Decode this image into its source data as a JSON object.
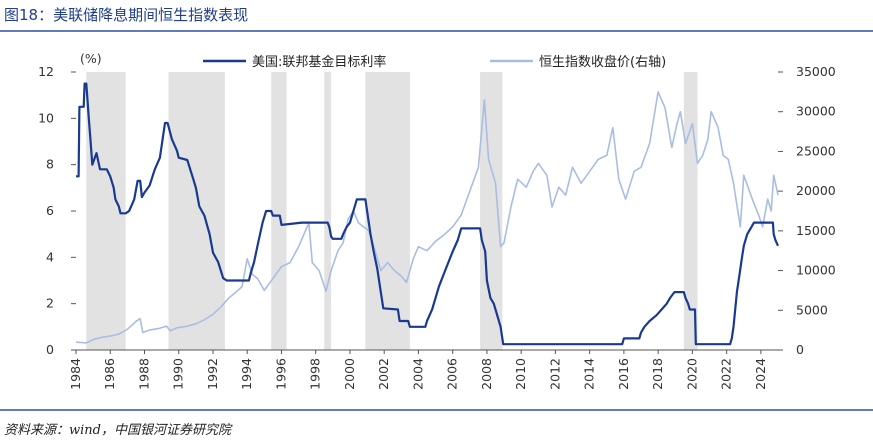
{
  "figure": {
    "title": "图18：美联储降息期间恒生指数表现",
    "source": "资料来源：wind，中国银河证券研究院"
  },
  "colors": {
    "rate": "#1a3a8f",
    "hsi": "#a9bde3",
    "shade": "#e2e2e2",
    "accent": "#1f3f8a"
  },
  "chart_data": {
    "type": "line",
    "title": "",
    "y_left_unit": "(%)",
    "x_range": [
      1984,
      2025
    ],
    "y_left": {
      "range": [
        0,
        12
      ],
      "ticks": [
        0,
        2,
        4,
        6,
        8,
        10,
        12
      ]
    },
    "y_right": {
      "label": "",
      "range": [
        0,
        35000
      ],
      "ticks": [
        0,
        5000,
        10000,
        15000,
        20000,
        25000,
        30000,
        35000
      ]
    },
    "x_ticks": [
      "1984",
      "1986",
      "1988",
      "1990",
      "1992",
      "1994",
      "1996",
      "1998",
      "2000",
      "2002",
      "2004",
      "2006",
      "2008",
      "2010",
      "2012",
      "2014",
      "2016",
      "2018",
      "2020",
      "2022",
      "2024"
    ],
    "legend": "top",
    "shaded_periods": [
      [
        1984.6,
        1986.9
      ],
      [
        1989.4,
        1992.7
      ],
      [
        1995.4,
        1996.3
      ],
      [
        1998.5,
        1998.9
      ],
      [
        2000.9,
        2003.5
      ],
      [
        2007.6,
        2008.9
      ],
      [
        2019.5,
        2020.3
      ]
    ],
    "series": [
      {
        "name": "美国:联邦基金目标利率",
        "axis": "left",
        "points": [
          [
            1984.0,
            7.5
          ],
          [
            1984.15,
            7.5
          ],
          [
            1984.2,
            10.5
          ],
          [
            1984.45,
            10.5
          ],
          [
            1984.5,
            11.5
          ],
          [
            1984.6,
            11.5
          ],
          [
            1984.75,
            10.0
          ],
          [
            1984.85,
            9.0
          ],
          [
            1984.95,
            8.0
          ],
          [
            1985.1,
            8.3
          ],
          [
            1985.2,
            8.5
          ],
          [
            1985.4,
            7.8
          ],
          [
            1985.6,
            7.8
          ],
          [
            1985.8,
            7.8
          ],
          [
            1986.0,
            7.5
          ],
          [
            1986.2,
            7.0
          ],
          [
            1986.3,
            6.5
          ],
          [
            1986.5,
            6.2
          ],
          [
            1986.6,
            5.9
          ],
          [
            1986.9,
            5.9
          ],
          [
            1987.1,
            6.0
          ],
          [
            1987.4,
            6.5
          ],
          [
            1987.6,
            7.3
          ],
          [
            1987.75,
            7.3
          ],
          [
            1987.85,
            6.6
          ],
          [
            1988.0,
            6.8
          ],
          [
            1988.3,
            7.1
          ],
          [
            1988.6,
            7.8
          ],
          [
            1988.9,
            8.3
          ],
          [
            1989.2,
            9.8
          ],
          [
            1989.35,
            9.8
          ],
          [
            1989.6,
            9.1
          ],
          [
            1989.9,
            8.6
          ],
          [
            1990.0,
            8.3
          ],
          [
            1990.5,
            8.2
          ],
          [
            1990.8,
            7.5
          ],
          [
            1991.0,
            7.0
          ],
          [
            1991.2,
            6.2
          ],
          [
            1991.5,
            5.8
          ],
          [
            1991.8,
            5.0
          ],
          [
            1992.0,
            4.2
          ],
          [
            1992.3,
            3.8
          ],
          [
            1992.6,
            3.1
          ],
          [
            1992.8,
            3.0
          ],
          [
            1993.0,
            3.0
          ],
          [
            1994.1,
            3.0
          ],
          [
            1994.2,
            3.3
          ],
          [
            1994.4,
            3.8
          ],
          [
            1994.6,
            4.5
          ],
          [
            1994.9,
            5.5
          ],
          [
            1995.1,
            6.0
          ],
          [
            1995.4,
            6.0
          ],
          [
            1995.5,
            5.8
          ],
          [
            1995.9,
            5.8
          ],
          [
            1996.0,
            5.4
          ],
          [
            1997.2,
            5.5
          ],
          [
            1998.7,
            5.5
          ],
          [
            1998.8,
            5.3
          ],
          [
            1998.9,
            4.9
          ],
          [
            1999.0,
            4.8
          ],
          [
            1999.5,
            4.8
          ],
          [
            1999.6,
            5.0
          ],
          [
            1999.8,
            5.3
          ],
          [
            2000.0,
            5.5
          ],
          [
            2000.2,
            6.0
          ],
          [
            2000.4,
            6.5
          ],
          [
            2000.5,
            6.5
          ],
          [
            2000.9,
            6.5
          ],
          [
            2001.0,
            6.0
          ],
          [
            2001.2,
            5.0
          ],
          [
            2001.4,
            4.2
          ],
          [
            2001.6,
            3.5
          ],
          [
            2001.8,
            2.5
          ],
          [
            2001.95,
            1.8
          ],
          [
            2002.8,
            1.75
          ],
          [
            2002.9,
            1.25
          ],
          [
            2003.4,
            1.25
          ],
          [
            2003.5,
            1.0
          ],
          [
            2004.4,
            1.0
          ],
          [
            2004.5,
            1.25
          ],
          [
            2004.8,
            1.75
          ],
          [
            2005.2,
            2.75
          ],
          [
            2005.6,
            3.5
          ],
          [
            2006.0,
            4.25
          ],
          [
            2006.3,
            4.75
          ],
          [
            2006.5,
            5.25
          ],
          [
            2007.6,
            5.25
          ],
          [
            2007.7,
            4.75
          ],
          [
            2007.9,
            4.25
          ],
          [
            2008.0,
            3.0
          ],
          [
            2008.2,
            2.25
          ],
          [
            2008.4,
            2.0
          ],
          [
            2008.8,
            1.0
          ],
          [
            2008.95,
            0.25
          ],
          [
            2015.9,
            0.25
          ],
          [
            2016.0,
            0.5
          ],
          [
            2016.9,
            0.5
          ],
          [
            2017.0,
            0.75
          ],
          [
            2017.2,
            1.0
          ],
          [
            2017.5,
            1.25
          ],
          [
            2017.9,
            1.5
          ],
          [
            2018.2,
            1.75
          ],
          [
            2018.5,
            2.0
          ],
          [
            2018.7,
            2.25
          ],
          [
            2018.95,
            2.5
          ],
          [
            2019.5,
            2.5
          ],
          [
            2019.6,
            2.25
          ],
          [
            2019.75,
            2.0
          ],
          [
            2019.85,
            1.75
          ],
          [
            2020.15,
            1.75
          ],
          [
            2020.2,
            0.25
          ],
          [
            2022.2,
            0.25
          ],
          [
            2022.3,
            0.5
          ],
          [
            2022.4,
            1.0
          ],
          [
            2022.5,
            1.75
          ],
          [
            2022.6,
            2.5
          ],
          [
            2022.75,
            3.25
          ],
          [
            2022.9,
            4.0
          ],
          [
            2023.0,
            4.5
          ],
          [
            2023.2,
            5.0
          ],
          [
            2023.4,
            5.25
          ],
          [
            2023.6,
            5.5
          ],
          [
            2024.7,
            5.5
          ],
          [
            2024.75,
            5.0
          ],
          [
            2024.85,
            4.75
          ],
          [
            2025.0,
            4.5
          ]
        ]
      },
      {
        "name": "恒生指数收盘价(右轴)",
        "axis": "right",
        "points": [
          [
            1984.0,
            1000
          ],
          [
            1984.6,
            900
          ],
          [
            1985.0,
            1300
          ],
          [
            1985.5,
            1600
          ],
          [
            1986.0,
            1750
          ],
          [
            1986.5,
            2000
          ],
          [
            1987.0,
            2600
          ],
          [
            1987.5,
            3600
          ],
          [
            1987.75,
            3950
          ],
          [
            1987.9,
            2200
          ],
          [
            1988.3,
            2500
          ],
          [
            1988.8,
            2700
          ],
          [
            1989.3,
            3000
          ],
          [
            1989.5,
            2400
          ],
          [
            1989.9,
            2800
          ],
          [
            1990.5,
            3000
          ],
          [
            1991.0,
            3300
          ],
          [
            1991.5,
            3800
          ],
          [
            1992.0,
            4500
          ],
          [
            1992.5,
            5500
          ],
          [
            1992.9,
            6500
          ],
          [
            1993.3,
            7200
          ],
          [
            1993.7,
            8000
          ],
          [
            1994.0,
            11500
          ],
          [
            1994.3,
            9500
          ],
          [
            1994.6,
            9000
          ],
          [
            1995.0,
            7500
          ],
          [
            1995.5,
            9000
          ],
          [
            1996.0,
            10500
          ],
          [
            1996.5,
            11000
          ],
          [
            1997.0,
            13000
          ],
          [
            1997.3,
            14500
          ],
          [
            1997.6,
            16000
          ],
          [
            1997.8,
            11000
          ],
          [
            1998.2,
            10000
          ],
          [
            1998.6,
            7400
          ],
          [
            1998.9,
            10000
          ],
          [
            1999.3,
            12500
          ],
          [
            1999.6,
            13500
          ],
          [
            1999.9,
            16500
          ],
          [
            2000.2,
            17500
          ],
          [
            2000.5,
            16000
          ],
          [
            2000.8,
            15500
          ],
          [
            2001.1,
            15000
          ],
          [
            2001.4,
            13000
          ],
          [
            2001.8,
            10000
          ],
          [
            2002.2,
            11000
          ],
          [
            2002.6,
            10000
          ],
          [
            2003.0,
            9300
          ],
          [
            2003.3,
            8500
          ],
          [
            2003.7,
            11500
          ],
          [
            2004.0,
            13000
          ],
          [
            2004.5,
            12500
          ],
          [
            2005.0,
            13700
          ],
          [
            2005.5,
            14500
          ],
          [
            2006.0,
            15500
          ],
          [
            2006.5,
            17000
          ],
          [
            2007.0,
            20000
          ],
          [
            2007.5,
            23000
          ],
          [
            2007.85,
            31500
          ],
          [
            2008.1,
            24000
          ],
          [
            2008.5,
            21000
          ],
          [
            2008.8,
            13000
          ],
          [
            2009.0,
            13500
          ],
          [
            2009.4,
            18000
          ],
          [
            2009.8,
            21500
          ],
          [
            2010.3,
            20500
          ],
          [
            2010.7,
            22500
          ],
          [
            2011.0,
            23500
          ],
          [
            2011.5,
            22000
          ],
          [
            2011.8,
            18000
          ],
          [
            2012.2,
            20500
          ],
          [
            2012.6,
            19500
          ],
          [
            2013.0,
            23000
          ],
          [
            2013.5,
            21000
          ],
          [
            2014.0,
            22500
          ],
          [
            2014.5,
            24000
          ],
          [
            2015.0,
            24500
          ],
          [
            2015.35,
            28000
          ],
          [
            2015.7,
            21500
          ],
          [
            2016.1,
            19000
          ],
          [
            2016.6,
            22500
          ],
          [
            2017.0,
            23000
          ],
          [
            2017.5,
            26000
          ],
          [
            2018.0,
            32500
          ],
          [
            2018.4,
            30500
          ],
          [
            2018.8,
            25500
          ],
          [
            2019.1,
            28500
          ],
          [
            2019.3,
            30000
          ],
          [
            2019.6,
            26000
          ],
          [
            2020.0,
            28500
          ],
          [
            2020.3,
            23500
          ],
          [
            2020.6,
            24500
          ],
          [
            2020.9,
            26500
          ],
          [
            2021.1,
            30000
          ],
          [
            2021.5,
            28000
          ],
          [
            2021.8,
            24500
          ],
          [
            2022.1,
            24000
          ],
          [
            2022.4,
            21000
          ],
          [
            2022.8,
            15500
          ],
          [
            2023.0,
            22000
          ],
          [
            2023.5,
            19000
          ],
          [
            2023.9,
            16800
          ],
          [
            2024.1,
            15500
          ],
          [
            2024.4,
            19000
          ],
          [
            2024.6,
            17500
          ],
          [
            2024.75,
            22000
          ],
          [
            2025.0,
            19500
          ]
        ]
      }
    ]
  }
}
